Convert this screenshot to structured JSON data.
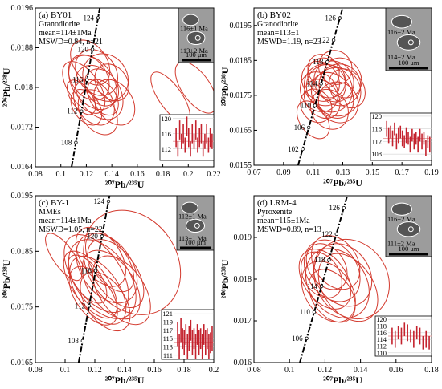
{
  "chart_data": [
    {
      "type": "scatter",
      "panel": "(a) BY01",
      "rock": "Granodiorite",
      "stats": [
        "mean=114±1Ma",
        "MSWD=0.84, n=21"
      ],
      "xlabel": "²⁰⁷Pb/²³⁵U",
      "ylabel": "²⁰⁶Pb/²³⁸U",
      "xlim": [
        0.08,
        0.22
      ],
      "ylim": [
        0.0164,
        0.0196
      ],
      "xticks": [
        0.08,
        0.1,
        0.12,
        0.14,
        0.16,
        0.18,
        0.2,
        0.22
      ],
      "yticks": [
        0.0164,
        0.0172,
        0.018,
        0.0188,
        0.0196
      ],
      "concordia_labels": [
        {
          "text": "108",
          "x": 0.1118,
          "y": 0.01689
        },
        {
          "text": "112",
          "x": 0.1162,
          "y": 0.01752
        },
        {
          "text": "116",
          "x": 0.1205,
          "y": 0.01815
        },
        {
          "text": "120",
          "x": 0.1248,
          "y": 0.01877
        },
        {
          "text": "124",
          "x": 0.1292,
          "y": 0.0194
        }
      ],
      "ellipses": [
        {
          "x": 0.118,
          "y": 0.018,
          "rx": 0.012,
          "ry": 0.0006
        },
        {
          "x": 0.122,
          "y": 0.0182,
          "rx": 0.014,
          "ry": 0.0005
        },
        {
          "x": 0.125,
          "y": 0.0181,
          "rx": 0.016,
          "ry": 0.0006
        },
        {
          "x": 0.128,
          "y": 0.0183,
          "rx": 0.015,
          "ry": 0.0005
        },
        {
          "x": 0.13,
          "y": 0.0179,
          "rx": 0.016,
          "ry": 0.0006
        },
        {
          "x": 0.132,
          "y": 0.018,
          "rx": 0.012,
          "ry": 0.0004
        },
        {
          "x": 0.135,
          "y": 0.0182,
          "rx": 0.017,
          "ry": 0.0005
        },
        {
          "x": 0.126,
          "y": 0.0177,
          "rx": 0.014,
          "ry": 0.0005
        },
        {
          "x": 0.12,
          "y": 0.0176,
          "rx": 0.01,
          "ry": 0.0004
        },
        {
          "x": 0.14,
          "y": 0.0181,
          "rx": 0.012,
          "ry": 0.0004
        },
        {
          "x": 0.123,
          "y": 0.0185,
          "rx": 0.013,
          "ry": 0.0005
        },
        {
          "x": 0.129,
          "y": 0.0175,
          "rx": 0.013,
          "ry": 0.0005
        },
        {
          "x": 0.116,
          "y": 0.0178,
          "rx": 0.008,
          "ry": 0.0004
        },
        {
          "x": 0.142,
          "y": 0.0177,
          "rx": 0.014,
          "ry": 0.0005
        },
        {
          "x": 0.133,
          "y": 0.0178,
          "rx": 0.01,
          "ry": 0.0004
        },
        {
          "x": 0.186,
          "y": 0.0178,
          "rx": 0.009,
          "ry": 0.0006
        },
        {
          "x": 0.206,
          "y": 0.018,
          "rx": 0.011,
          "ry": 0.0006
        }
      ],
      "inset": {
        "yticks": [
          120,
          116,
          112
        ],
        "ylim": [
          109,
          121
        ],
        "values": [
          115,
          112,
          117,
          114,
          116,
          113,
          118,
          115,
          112,
          116,
          114,
          117,
          113,
          115,
          116,
          112,
          114,
          116,
          113,
          115,
          114
        ],
        "errors": [
          2.5,
          2.0,
          2.5,
          2.0,
          2.5,
          2.0,
          2.5,
          2.5,
          2.0,
          2.5,
          2.0,
          2.5,
          2.0,
          2.5,
          2.5,
          2.0,
          2.0,
          2.5,
          2.0,
          2.5,
          2.0
        ],
        "mean": 114
      },
      "zircons": [
        "116±1 Ma",
        "113±2 Ma",
        "100 μm"
      ]
    },
    {
      "type": "scatter",
      "panel": "(b) BY02",
      "rock": "Granodiorite",
      "stats": [
        "mean=113±1",
        "MSWD=1.19, n=23"
      ],
      "xlabel": "²⁰⁷Pb/²³⁵U",
      "ylabel": "²⁰⁶Pb/²³⁸U",
      "xlim": [
        0.07,
        0.19
      ],
      "ylim": [
        0.0155,
        0.02
      ],
      "xticks": [
        0.07,
        0.09,
        0.11,
        0.13,
        0.15,
        0.17,
        0.19
      ],
      "yticks": [
        0.0155,
        0.0165,
        0.0175,
        0.0185,
        0.0195
      ],
      "concordia_labels": [
        {
          "text": "102",
          "x": 0.1029,
          "y": 0.01596
        },
        {
          "text": "106",
          "x": 0.107,
          "y": 0.01658
        },
        {
          "text": "110",
          "x": 0.1112,
          "y": 0.01721
        },
        {
          "text": "114",
          "x": 0.1154,
          "y": 0.01783
        },
        {
          "text": "118",
          "x": 0.1196,
          "y": 0.01846
        },
        {
          "text": "122",
          "x": 0.1238,
          "y": 0.01908
        },
        {
          "text": "126",
          "x": 0.128,
          "y": 0.01971
        }
      ],
      "ellipses": [
        {
          "x": 0.114,
          "y": 0.0176,
          "rx": 0.012,
          "ry": 0.0006
        },
        {
          "x": 0.118,
          "y": 0.0178,
          "rx": 0.014,
          "ry": 0.0006
        },
        {
          "x": 0.121,
          "y": 0.0177,
          "rx": 0.015,
          "ry": 0.0007
        },
        {
          "x": 0.124,
          "y": 0.0179,
          "rx": 0.013,
          "ry": 0.0006
        },
        {
          "x": 0.116,
          "y": 0.0174,
          "rx": 0.011,
          "ry": 0.0006
        },
        {
          "x": 0.126,
          "y": 0.0176,
          "rx": 0.016,
          "ry": 0.0007
        },
        {
          "x": 0.119,
          "y": 0.018,
          "rx": 0.012,
          "ry": 0.0006
        },
        {
          "x": 0.128,
          "y": 0.0178,
          "rx": 0.014,
          "ry": 0.0006
        },
        {
          "x": 0.112,
          "y": 0.0172,
          "rx": 0.01,
          "ry": 0.0005
        },
        {
          "x": 0.123,
          "y": 0.0175,
          "rx": 0.013,
          "ry": 0.0007
        },
        {
          "x": 0.13,
          "y": 0.018,
          "rx": 0.012,
          "ry": 0.0006
        },
        {
          "x": 0.117,
          "y": 0.0182,
          "rx": 0.01,
          "ry": 0.0005
        },
        {
          "x": 0.121,
          "y": 0.0171,
          "rx": 0.012,
          "ry": 0.0006
        },
        {
          "x": 0.133,
          "y": 0.0177,
          "rx": 0.011,
          "ry": 0.0006
        },
        {
          "x": 0.11,
          "y": 0.0168,
          "rx": 0.009,
          "ry": 0.0006
        },
        {
          "x": 0.125,
          "y": 0.0183,
          "rx": 0.011,
          "ry": 0.0005
        },
        {
          "x": 0.115,
          "y": 0.0179,
          "rx": 0.012,
          "ry": 0.0006
        },
        {
          "x": 0.127,
          "y": 0.0173,
          "rx": 0.013,
          "ry": 0.0006
        }
      ],
      "inset": {
        "yticks": [
          120,
          116,
          112,
          108
        ],
        "ylim": [
          106,
          121
        ],
        "values": [
          116,
          114,
          115,
          113,
          116,
          112,
          114,
          115,
          113,
          112,
          114,
          113,
          111,
          114,
          112,
          113,
          111,
          114,
          112,
          113,
          110,
          112,
          111
        ],
        "errors": [
          2.5,
          2.5,
          2.0,
          2.5,
          2.0,
          2.5,
          2.5,
          2.0,
          2.5,
          2.0,
          2.5,
          2.0,
          2.5,
          2.0,
          2.5,
          2.0,
          2.5,
          2.0,
          2.5,
          2.0,
          2.5,
          2.0,
          2.5
        ],
        "mean": 113
      },
      "zircons": [
        "116±2 Ma",
        "114±2 Ma",
        "100 μm"
      ]
    },
    {
      "type": "scatter",
      "panel": "(c) BY-1",
      "rock": "MMEs",
      "stats": [
        "mean=114±1Ma",
        "MSWD=1.05, n=22"
      ],
      "xlabel": "²⁰⁷Pb/²³⁵U",
      "ylabel": "²⁰⁶Pb/²³⁸U",
      "xlim": [
        0.08,
        0.2
      ],
      "ylim": [
        0.0165,
        0.0195
      ],
      "xticks": [
        0.08,
        0.1,
        0.12,
        0.14,
        0.16,
        0.18,
        0.2
      ],
      "yticks": [
        0.0165,
        0.0175,
        0.0185,
        0.0195
      ],
      "concordia_labels": [
        {
          "text": "108",
          "x": 0.1118,
          "y": 0.01689
        },
        {
          "text": "112",
          "x": 0.1162,
          "y": 0.01752
        },
        {
          "text": "116",
          "x": 0.1205,
          "y": 0.01815
        },
        {
          "text": "120",
          "x": 0.1248,
          "y": 0.01877
        },
        {
          "text": "124",
          "x": 0.1292,
          "y": 0.0194
        }
      ],
      "ellipses": [
        {
          "x": 0.117,
          "y": 0.0179,
          "rx": 0.012,
          "ry": 0.0007
        },
        {
          "x": 0.121,
          "y": 0.0181,
          "rx": 0.016,
          "ry": 0.0008
        },
        {
          "x": 0.125,
          "y": 0.018,
          "rx": 0.018,
          "ry": 0.0008
        },
        {
          "x": 0.128,
          "y": 0.0182,
          "rx": 0.017,
          "ry": 0.0007
        },
        {
          "x": 0.131,
          "y": 0.0179,
          "rx": 0.015,
          "ry": 0.0007
        },
        {
          "x": 0.119,
          "y": 0.0177,
          "rx": 0.012,
          "ry": 0.0006
        },
        {
          "x": 0.124,
          "y": 0.0184,
          "rx": 0.013,
          "ry": 0.0006
        },
        {
          "x": 0.134,
          "y": 0.0181,
          "rx": 0.014,
          "ry": 0.0007
        },
        {
          "x": 0.127,
          "y": 0.0176,
          "rx": 0.013,
          "ry": 0.0006
        },
        {
          "x": 0.115,
          "y": 0.018,
          "rx": 0.009,
          "ry": 0.0005
        },
        {
          "x": 0.122,
          "y": 0.0178,
          "rx": 0.014,
          "ry": 0.0007
        },
        {
          "x": 0.13,
          "y": 0.0183,
          "rx": 0.012,
          "ry": 0.0006
        },
        {
          "x": 0.099,
          "y": 0.0184,
          "rx": 0.007,
          "ry": 0.0005
        },
        {
          "x": 0.145,
          "y": 0.0183,
          "rx": 0.03,
          "ry": 0.001
        },
        {
          "x": 0.138,
          "y": 0.0178,
          "rx": 0.015,
          "ry": 0.0007
        }
      ],
      "inset": {
        "yticks": [
          121,
          119,
          117,
          115,
          113,
          111
        ],
        "ylim": [
          110,
          122
        ],
        "values": [
          116,
          113,
          117,
          115,
          114,
          116,
          113,
          115,
          117,
          114,
          115,
          113,
          116,
          114,
          115,
          113,
          116,
          114,
          115,
          113,
          114,
          115
        ],
        "errors": [
          3,
          3,
          3,
          2.5,
          3,
          2.5,
          3,
          3,
          2.5,
          3,
          2.5,
          3,
          2.5,
          3,
          2.5,
          3,
          2.5,
          3,
          2.5,
          3,
          2.5,
          3
        ],
        "mean": 114
      },
      "zircons": [
        "112±1 Ma",
        "113±1 Ma",
        "100 μm"
      ]
    },
    {
      "type": "scatter",
      "panel": "(d) LRM-4",
      "rock": "Pyroxenite",
      "stats": [
        "mean=115±1Ma",
        "MSWD=0.89, n=13"
      ],
      "xlabel": "²⁰⁷Pb/²³⁵U",
      "ylabel": "²⁰⁶Pb/²³⁸U",
      "xlim": [
        0.08,
        0.18
      ],
      "ylim": [
        0.016,
        0.02
      ],
      "xticks": [
        0.08,
        0.1,
        0.12,
        0.14,
        0.16,
        0.18
      ],
      "yticks": [
        0.016,
        0.017,
        0.018,
        0.019
      ],
      "concordia_labels": [
        {
          "text": "106",
          "x": 0.1097,
          "y": 0.01658
        },
        {
          "text": "110",
          "x": 0.1139,
          "y": 0.01721
        },
        {
          "text": "114",
          "x": 0.1181,
          "y": 0.01783
        },
        {
          "text": "118",
          "x": 0.1223,
          "y": 0.01846
        },
        {
          "text": "122",
          "x": 0.1265,
          "y": 0.01908
        },
        {
          "text": "126",
          "x": 0.1306,
          "y": 0.01971
        }
      ],
      "ellipses": [
        {
          "x": 0.12,
          "y": 0.018,
          "rx": 0.012,
          "ry": 0.0008
        },
        {
          "x": 0.124,
          "y": 0.0182,
          "rx": 0.014,
          "ry": 0.0008
        },
        {
          "x": 0.127,
          "y": 0.0179,
          "rx": 0.016,
          "ry": 0.0009
        },
        {
          "x": 0.122,
          "y": 0.0177,
          "rx": 0.013,
          "ry": 0.0008
        },
        {
          "x": 0.13,
          "y": 0.0181,
          "rx": 0.015,
          "ry": 0.0008
        },
        {
          "x": 0.118,
          "y": 0.0181,
          "rx": 0.01,
          "ry": 0.0006
        },
        {
          "x": 0.126,
          "y": 0.0184,
          "rx": 0.012,
          "ry": 0.0007
        },
        {
          "x": 0.133,
          "y": 0.0178,
          "rx": 0.014,
          "ry": 0.0009
        },
        {
          "x": 0.124,
          "y": 0.0176,
          "rx": 0.011,
          "ry": 0.0007
        },
        {
          "x": 0.135,
          "y": 0.018,
          "rx": 0.02,
          "ry": 0.001
        },
        {
          "x": 0.121,
          "y": 0.0183,
          "rx": 0.01,
          "ry": 0.0006
        }
      ],
      "inset": {
        "yticks": [
          120,
          118,
          116,
          114,
          112,
          110
        ],
        "ylim": [
          109,
          121
        ],
        "values": [
          115,
          114,
          116,
          115,
          117,
          116,
          115,
          114,
          116,
          115,
          113,
          114,
          113
        ],
        "errors": [
          2.5,
          2.5,
          2.0,
          2.5,
          2.0,
          2.5,
          2.0,
          2.5,
          2.0,
          2.5,
          2.0,
          2.5,
          2.0
        ],
        "mean": 115
      },
      "zircons": [
        "116±2 Ma",
        "111±2 Ma",
        "100 μm"
      ]
    }
  ]
}
